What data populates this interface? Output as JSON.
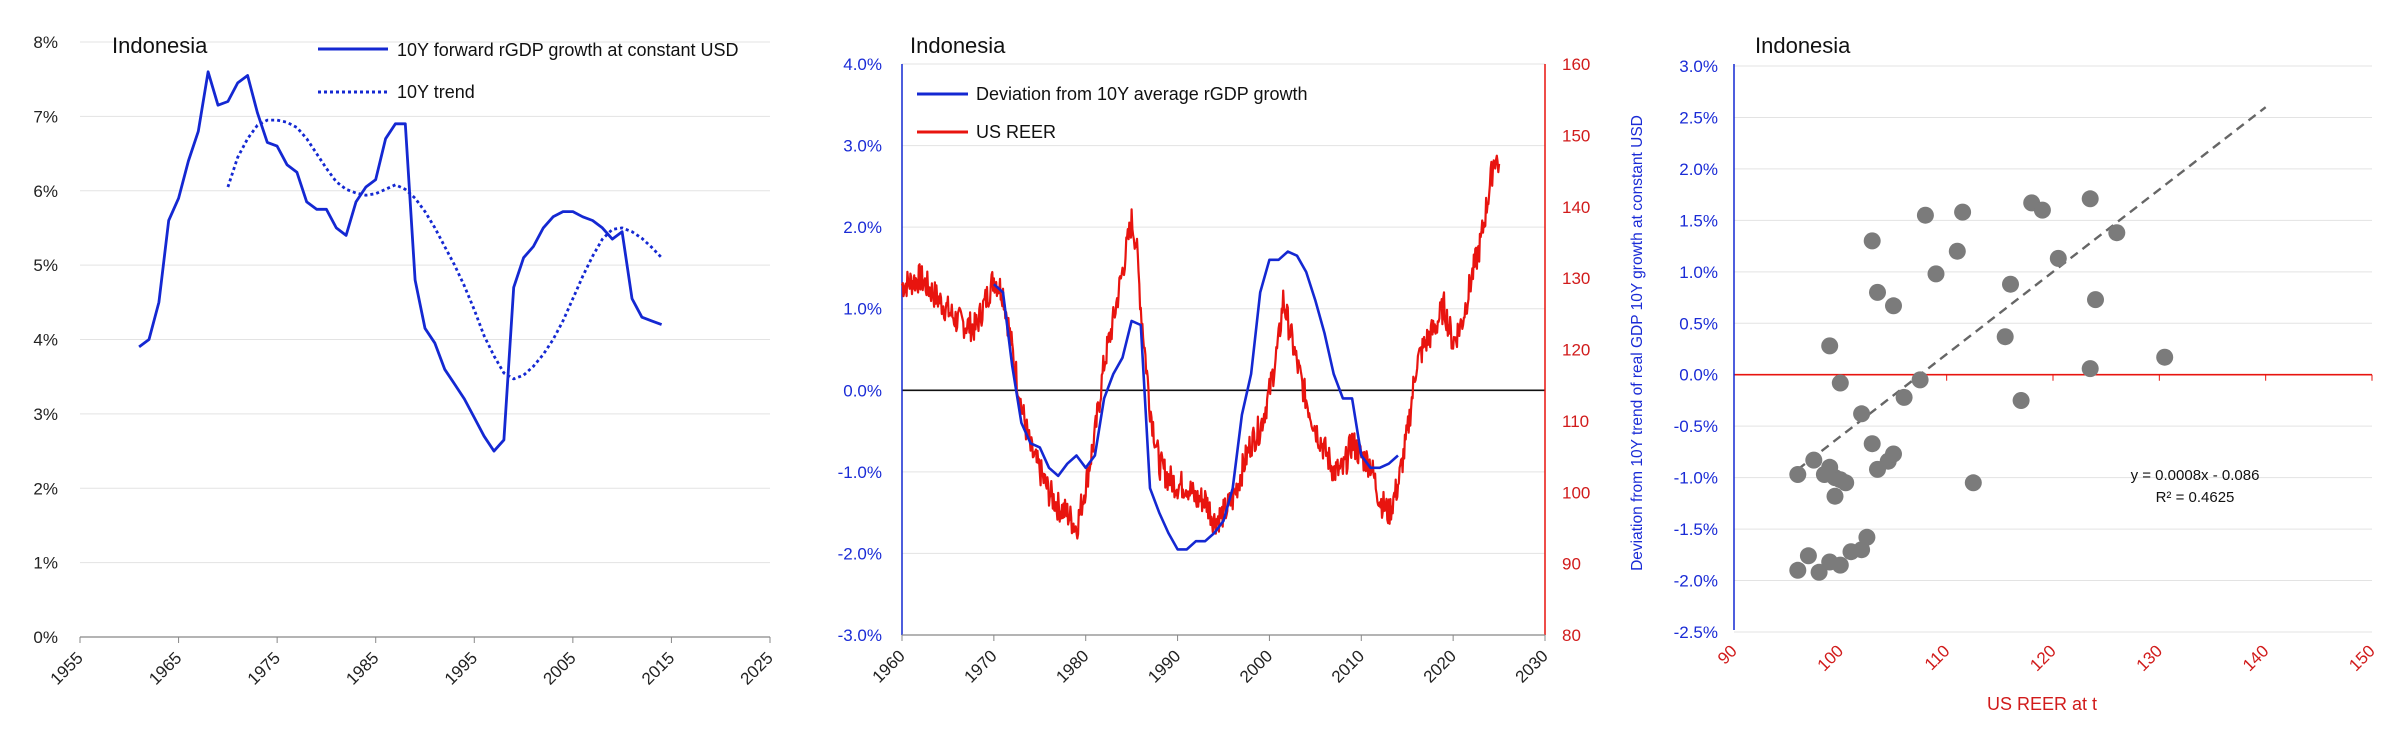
{
  "colors": {
    "blue": "#1428d2",
    "red": "#e8140f",
    "grey": "#7b7b7b",
    "dash": "#666666",
    "grid": "#e3e3e3"
  },
  "chart_data": [
    {
      "type": "line",
      "title": "Indonesia",
      "x_ticks": [
        "1955",
        "1965",
        "1975",
        "1985",
        "1995",
        "2005",
        "2015",
        "2025"
      ],
      "y_ticks": [
        "0%",
        "1%",
        "2%",
        "3%",
        "4%",
        "5%",
        "6%",
        "7%",
        "8%"
      ],
      "xlim": [
        1955,
        2025
      ],
      "ylim": [
        0,
        8
      ],
      "series": [
        {
          "name": "10Y forward rGDP growth at constant USD",
          "style": "solid",
          "x": [
            1961,
            1962,
            1963,
            1964,
            1965,
            1966,
            1967,
            1968,
            1969,
            1970,
            1971,
            1972,
            1973,
            1974,
            1975,
            1976,
            1977,
            1978,
            1979,
            1980,
            1981,
            1982,
            1983,
            1984,
            1985,
            1986,
            1987,
            1988,
            1989,
            1990,
            1991,
            1992,
            1993,
            1994,
            1995,
            1996,
            1997,
            1998,
            1999,
            2000,
            2001,
            2002,
            2003,
            2004,
            2005,
            2006,
            2007,
            2008,
            2009,
            2010,
            2011,
            2012,
            2013,
            2014
          ],
          "y": [
            3.9,
            4.0,
            4.5,
            5.6,
            5.9,
            6.4,
            6.8,
            7.6,
            7.15,
            7.2,
            7.45,
            7.55,
            7.05,
            6.65,
            6.6,
            6.35,
            6.25,
            5.85,
            5.75,
            5.75,
            5.5,
            5.4,
            5.85,
            6.05,
            6.15,
            6.7,
            6.9,
            6.9,
            4.8,
            4.15,
            3.95,
            3.6,
            3.4,
            3.2,
            2.95,
            2.7,
            2.5,
            2.65,
            4.7,
            5.1,
            5.25,
            5.5,
            5.65,
            5.72,
            5.72,
            5.65,
            5.6,
            5.5,
            5.35,
            5.45,
            4.55,
            4.3,
            4.25,
            4.2
          ]
        },
        {
          "name": "10Y trend",
          "style": "dotted",
          "x": [
            1970,
            1971,
            1972,
            1973,
            1974,
            1975,
            1976,
            1977,
            1978,
            1979,
            1980,
            1981,
            1982,
            1983,
            1984,
            1985,
            1986,
            1987,
            1988,
            1989,
            1990,
            1991,
            1992,
            1993,
            1994,
            1995,
            1996,
            1997,
            1998,
            1999,
            2000,
            2001,
            2002,
            2003,
            2004,
            2005,
            2006,
            2007,
            2008,
            2009,
            2010,
            2011,
            2012,
            2013,
            2014
          ],
          "y": [
            6.05,
            6.45,
            6.7,
            6.88,
            6.95,
            6.95,
            6.92,
            6.85,
            6.7,
            6.5,
            6.3,
            6.12,
            6.02,
            5.97,
            5.94,
            5.96,
            6.02,
            6.08,
            6.02,
            5.9,
            5.72,
            5.5,
            5.25,
            5.0,
            4.72,
            4.4,
            4.05,
            3.78,
            3.55,
            3.47,
            3.52,
            3.64,
            3.8,
            4.0,
            4.25,
            4.55,
            4.85,
            5.12,
            5.35,
            5.48,
            5.5,
            5.45,
            5.36,
            5.24,
            5.1
          ]
        }
      ]
    },
    {
      "type": "line",
      "title": "Indonesia",
      "x_ticks": [
        "1960",
        "1970",
        "1980",
        "1990",
        "2000",
        "2010",
        "2020",
        "2030"
      ],
      "xlim": [
        1960,
        2030
      ],
      "y_left_ticks": [
        "-3.0%",
        "-2.0%",
        "-1.0%",
        "0.0%",
        "1.0%",
        "2.0%",
        "3.0%",
        "4.0%"
      ],
      "y_left_lim": [
        -3,
        4
      ],
      "y_right_ticks": [
        "80",
        "90",
        "100",
        "110",
        "120",
        "130",
        "140",
        "150",
        "160"
      ],
      "y_right_lim": [
        80,
        160
      ],
      "series": [
        {
          "name": "Deviation from 10Y average rGDP growth",
          "axis": "left",
          "x": [
            1970,
            1971,
            1972,
            1973,
            1974,
            1975,
            1976,
            1977,
            1978,
            1979,
            1980,
            1981,
            1982,
            1983,
            1984,
            1985,
            1986,
            1987,
            1988,
            1989,
            1990,
            1991,
            1992,
            1993,
            1994,
            1995,
            1996,
            1997,
            1998,
            1999,
            2000,
            2001,
            2002,
            2003,
            2004,
            2005,
            2006,
            2007,
            2008,
            2009,
            2010,
            2011,
            2012,
            2013,
            2014
          ],
          "y": [
            1.3,
            1.2,
            0.3,
            -0.4,
            -0.65,
            -0.7,
            -0.95,
            -1.05,
            -0.9,
            -0.8,
            -0.95,
            -0.8,
            -0.1,
            0.2,
            0.4,
            0.85,
            0.8,
            -1.2,
            -1.5,
            -1.75,
            -1.95,
            -1.95,
            -1.85,
            -1.85,
            -1.75,
            -1.6,
            -1.2,
            -0.3,
            0.2,
            1.2,
            1.6,
            1.6,
            1.7,
            1.65,
            1.45,
            1.1,
            0.7,
            0.2,
            -0.1,
            -0.1,
            -0.8,
            -0.95,
            -0.95,
            -0.9,
            -0.8
          ]
        },
        {
          "name": "US REER",
          "axis": "right",
          "x": [
            1960,
            1962,
            1964,
            1966,
            1968,
            1970,
            1971,
            1972,
            1973,
            1974,
            1975,
            1976,
            1977,
            1978,
            1979,
            1980,
            1981,
            1982,
            1983,
            1984,
            1985,
            1985.5,
            1986,
            1987,
            1988,
            1989,
            1990,
            1991,
            1992,
            1993,
            1994,
            1995,
            1996,
            1997,
            1998,
            1999,
            2000,
            2001,
            2001.5,
            2002,
            2003,
            2004,
            2005,
            2006,
            2007,
            2008,
            2009,
            2010,
            2011,
            2012,
            2013,
            2014,
            2015,
            2016,
            2017,
            2018,
            2019,
            2020,
            2021,
            2022,
            2023,
            2024,
            2024.5,
            2025
          ],
          "y": [
            129,
            130,
            127,
            124,
            123,
            130,
            128,
            120,
            112,
            106,
            103,
            100,
            98,
            97,
            95,
            101,
            108,
            118,
            124,
            131,
            138,
            135,
            126,
            112,
            104,
            102,
            101,
            101,
            99,
            99,
            96,
            97,
            99,
            103,
            107,
            109,
            114,
            121,
            127,
            124,
            118,
            113,
            109,
            106,
            103,
            103,
            107,
            105,
            104,
            99,
            97,
            101,
            108,
            118,
            121,
            123,
            126,
            121,
            124,
            130,
            135,
            143,
            147,
            146
          ]
        }
      ],
      "legend": [
        "Deviation from 10Y average rGDP growth",
        "US REER"
      ]
    },
    {
      "type": "scatter",
      "title": "Indonesia",
      "xlabel": "US REER at t",
      "ylabel": "Deviation from 10Y trend of real GDP 10Y growth at constant USD",
      "x_ticks": [
        "90",
        "100",
        "110",
        "120",
        "130",
        "140",
        "150"
      ],
      "y_ticks": [
        "-2.5%",
        "-2.0%",
        "-1.5%",
        "-1.0%",
        "-0.5%",
        "0.0%",
        "0.5%",
        "1.0%",
        "1.5%",
        "2.0%",
        "2.5%",
        "3.0%"
      ],
      "xlim": [
        90,
        150
      ],
      "ylim": [
        -2.5,
        3.0
      ],
      "points": [
        [
          96,
          -1.9
        ],
        [
          97,
          -1.76
        ],
        [
          98,
          -1.92
        ],
        [
          99,
          -1.82
        ],
        [
          100,
          -1.85
        ],
        [
          101,
          -1.72
        ],
        [
          102,
          -1.7
        ],
        [
          102.5,
          -1.58
        ],
        [
          96,
          -0.97
        ],
        [
          97.5,
          -0.83
        ],
        [
          98.5,
          -0.97
        ],
        [
          99,
          -0.9
        ],
        [
          99.5,
          -1.0
        ],
        [
          100,
          -1.02
        ],
        [
          100.5,
          -1.05
        ],
        [
          99.5,
          -1.18
        ],
        [
          99,
          0.28
        ],
        [
          100,
          -0.08
        ],
        [
          102,
          -0.38
        ],
        [
          103,
          -0.67
        ],
        [
          103.5,
          -0.92
        ],
        [
          104.5,
          -0.84
        ],
        [
          105,
          -0.77
        ],
        [
          106,
          -0.22
        ],
        [
          103,
          1.3
        ],
        [
          103.5,
          0.8
        ],
        [
          105,
          0.67
        ],
        [
          107.5,
          -0.05
        ],
        [
          108,
          1.55
        ],
        [
          109,
          0.98
        ],
        [
          111,
          1.2
        ],
        [
          111.5,
          1.58
        ],
        [
          112.5,
          -1.05
        ],
        [
          115.5,
          0.37
        ],
        [
          116,
          0.88
        ],
        [
          117,
          -0.25
        ],
        [
          118,
          1.67
        ],
        [
          119,
          1.6
        ],
        [
          120.5,
          1.13
        ],
        [
          123.5,
          1.71
        ],
        [
          123.5,
          0.06
        ],
        [
          124,
          0.73
        ],
        [
          126,
          1.38
        ],
        [
          130.5,
          0.17
        ]
      ],
      "trendline": {
        "x": [
          96,
          140
        ],
        "equation": "y = 0.0008x - 0.086",
        "r2": "R² = 0.4625"
      }
    }
  ],
  "panel1": {
    "title": "Indonesia",
    "legend": {
      "series1": "10Y forward rGDP growth at constant USD",
      "series2": "10Y trend"
    }
  },
  "panel2": {
    "title": "Indonesia",
    "legend": {
      "series1": "Deviation from 10Y average rGDP growth",
      "series2": "US REER"
    }
  },
  "panel3": {
    "title": "Indonesia",
    "xlabel": "US REER at t",
    "ylabel": "Deviation from 10Y trend of real GDP 10Y growth at constant USD",
    "equation": "y = 0.0008x - 0.086",
    "r2": "R² = 0.4625"
  }
}
